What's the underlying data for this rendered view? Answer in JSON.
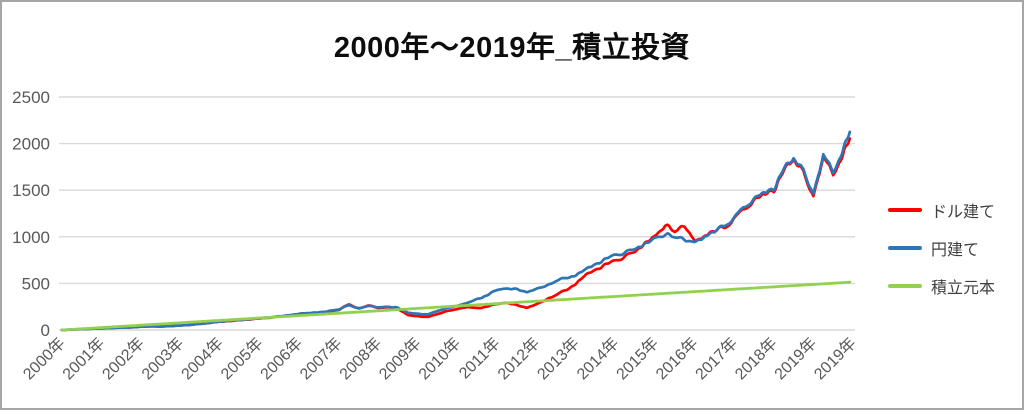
{
  "title": "2000年〜2019年_積立投資",
  "colors": {
    "usd_line": "#ff0000",
    "jpy_line": "#2e75b6",
    "principal_line": "#92d050",
    "grid": "#d9d9d9",
    "axis_text": "#595959",
    "legend_text": "#404040",
    "frame_border": "#a6a6a6",
    "title_text": "#0d0d0d"
  },
  "legend": {
    "items": [
      {
        "label": "ドル建て",
        "color": "#ff0000"
      },
      {
        "label": "円建て",
        "color": "#2e75b6"
      },
      {
        "label": "積立元本",
        "color": "#92d050"
      }
    ]
  },
  "chart_data": {
    "type": "line",
    "title": "2000年〜2019年_積立投資",
    "xlabel": "",
    "ylabel": "",
    "ylim": [
      0,
      2500
    ],
    "y_ticks": [
      0,
      500,
      1000,
      1500,
      2000,
      2500
    ],
    "grid": true,
    "legend_position": "right",
    "x_tick_labels": [
      "2000年",
      "2001年",
      "2002年",
      "2003年",
      "2004年",
      "2005年",
      "2006年",
      "2007年",
      "2008年",
      "2009年",
      "2010年",
      "2011年",
      "2012年",
      "2013年",
      "2014年",
      "2015年",
      "2016年",
      "2017年",
      "2018年",
      "2019年",
      "2019年"
    ],
    "x": [
      2000,
      2000.25,
      2000.5,
      2000.75,
      2001,
      2001.25,
      2001.5,
      2001.75,
      2002,
      2002.25,
      2002.5,
      2002.75,
      2003,
      2003.25,
      2003.5,
      2003.75,
      2004,
      2004.25,
      2004.5,
      2004.75,
      2005,
      2005.25,
      2005.5,
      2005.75,
      2006,
      2006.25,
      2006.5,
      2006.75,
      2007,
      2007.25,
      2007.5,
      2007.75,
      2008,
      2008.25,
      2008.5,
      2008.75,
      2009,
      2009.25,
      2009.5,
      2009.75,
      2010,
      2010.25,
      2010.5,
      2010.75,
      2011,
      2011.25,
      2011.5,
      2011.75,
      2012,
      2012.25,
      2012.5,
      2012.75,
      2013,
      2013.25,
      2013.5,
      2013.75,
      2014,
      2014.25,
      2014.5,
      2014.75,
      2015,
      2015.25,
      2015.5,
      2015.75,
      2016,
      2016.25,
      2016.5,
      2016.75,
      2017,
      2017.25,
      2017.5,
      2017.75,
      2018,
      2018.25,
      2018.5,
      2018.75,
      2019,
      2019.25,
      2019.5,
      2019.75,
      2019.92
    ],
    "series": [
      {
        "name": "ドル建て",
        "color": "#ff0000",
        "values": [
          0,
          5,
          10,
          14,
          18,
          22,
          27,
          28,
          36,
          40,
          38,
          42,
          48,
          55,
          66,
          78,
          90,
          97,
          105,
          115,
          125,
          133,
          145,
          158,
          170,
          180,
          185,
          200,
          220,
          278,
          228,
          265,
          235,
          248,
          228,
          160,
          148,
          140,
          172,
          205,
          228,
          248,
          232,
          252,
          278,
          292,
          268,
          235,
          275,
          330,
          380,
          430,
          500,
          590,
          640,
          700,
          740,
          790,
          840,
          930,
          1010,
          1120,
          1060,
          1130,
          950,
          1010,
          1060,
          1110,
          1200,
          1300,
          1380,
          1450,
          1500,
          1680,
          1840,
          1700,
          1400,
          1860,
          1680,
          1890,
          2020
        ]
      },
      {
        "name": "円建て",
        "color": "#2e75b6",
        "values": [
          0,
          4,
          9,
          13,
          17,
          21,
          26,
          27,
          35,
          39,
          37,
          42,
          49,
          56,
          67,
          79,
          91,
          99,
          107,
          117,
          128,
          136,
          148,
          162,
          174,
          184,
          190,
          205,
          225,
          268,
          232,
          260,
          242,
          252,
          240,
          185,
          175,
          168,
          205,
          238,
          262,
          292,
          330,
          372,
          430,
          445,
          440,
          400,
          440,
          480,
          530,
          560,
          590,
          650,
          700,
          760,
          800,
          830,
          870,
          920,
          990,
          1020,
          1000,
          980,
          940,
          1000,
          1050,
          1130,
          1210,
          1320,
          1400,
          1470,
          1520,
          1700,
          1850,
          1720,
          1430,
          1880,
          1700,
          1940,
          2095
        ]
      },
      {
        "name": "積立元本",
        "color": "#92d050",
        "values": [
          0,
          6,
          13,
          19,
          26,
          32,
          39,
          45,
          52,
          58,
          64,
          71,
          77,
          84,
          90,
          97,
          103,
          109,
          116,
          122,
          129,
          135,
          142,
          148,
          155,
          161,
          167,
          174,
          180,
          187,
          193,
          200,
          206,
          212,
          219,
          225,
          232,
          238,
          245,
          251,
          258,
          264,
          270,
          277,
          283,
          290,
          296,
          303,
          309,
          315,
          322,
          328,
          335,
          341,
          348,
          354,
          360,
          367,
          373,
          380,
          386,
          393,
          399,
          405,
          412,
          418,
          425,
          431,
          438,
          444,
          450,
          457,
          463,
          470,
          476,
          483,
          489,
          495,
          502,
          508,
          513
        ]
      }
    ]
  }
}
